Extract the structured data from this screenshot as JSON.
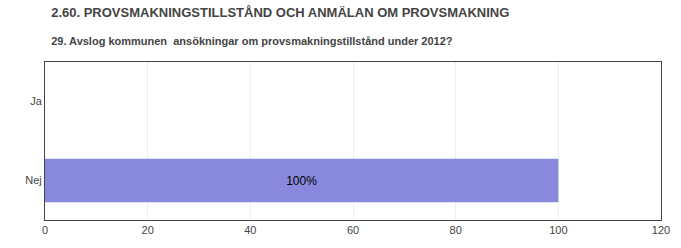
{
  "chart_data": {
    "type": "bar",
    "orientation": "horizontal",
    "title": "2.60. PROVSMAKNINGSTILLSTÅND OCH ANMÄLAN OM PROVSMAKNING",
    "subtitle": "29. Avslog kommunen  ansökningar om provsmakningstillstånd under 2012?",
    "categories": [
      "Ja",
      "Nej"
    ],
    "values": [
      0,
      100
    ],
    "value_labels": [
      null,
      "100%"
    ],
    "data_labels": true,
    "color": "#8888dd",
    "xlim": [
      0,
      120
    ],
    "xticks": [
      0,
      20,
      40,
      60,
      80,
      100,
      120
    ],
    "grid": true
  }
}
